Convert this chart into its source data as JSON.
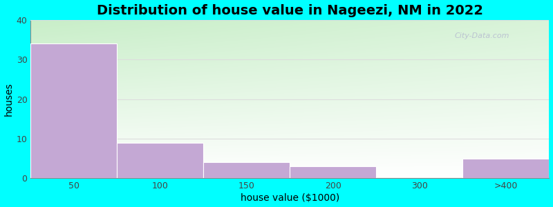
{
  "title": "Distribution of house value in Nageezi, NM in 2022",
  "xlabel": "house value ($1000)",
  "ylabel": "houses",
  "categories": [
    "50",
    "100",
    "150",
    "200",
    "300",
    ">400"
  ],
  "values": [
    34,
    9,
    4,
    3,
    0,
    5
  ],
  "bar_color": "#C4A8D4",
  "bar_edgecolor": "#ffffff",
  "ylim": [
    0,
    40
  ],
  "yticks": [
    0,
    10,
    20,
    30,
    40
  ],
  "background_outer": "#00FFFF",
  "plot_bg_top_left": "#c8eec8",
  "plot_bg_bottom_right": "#f0fff8",
  "title_fontsize": 14,
  "axis_label_fontsize": 10,
  "tick_fontsize": 9,
  "watermark": "City-Data.com"
}
